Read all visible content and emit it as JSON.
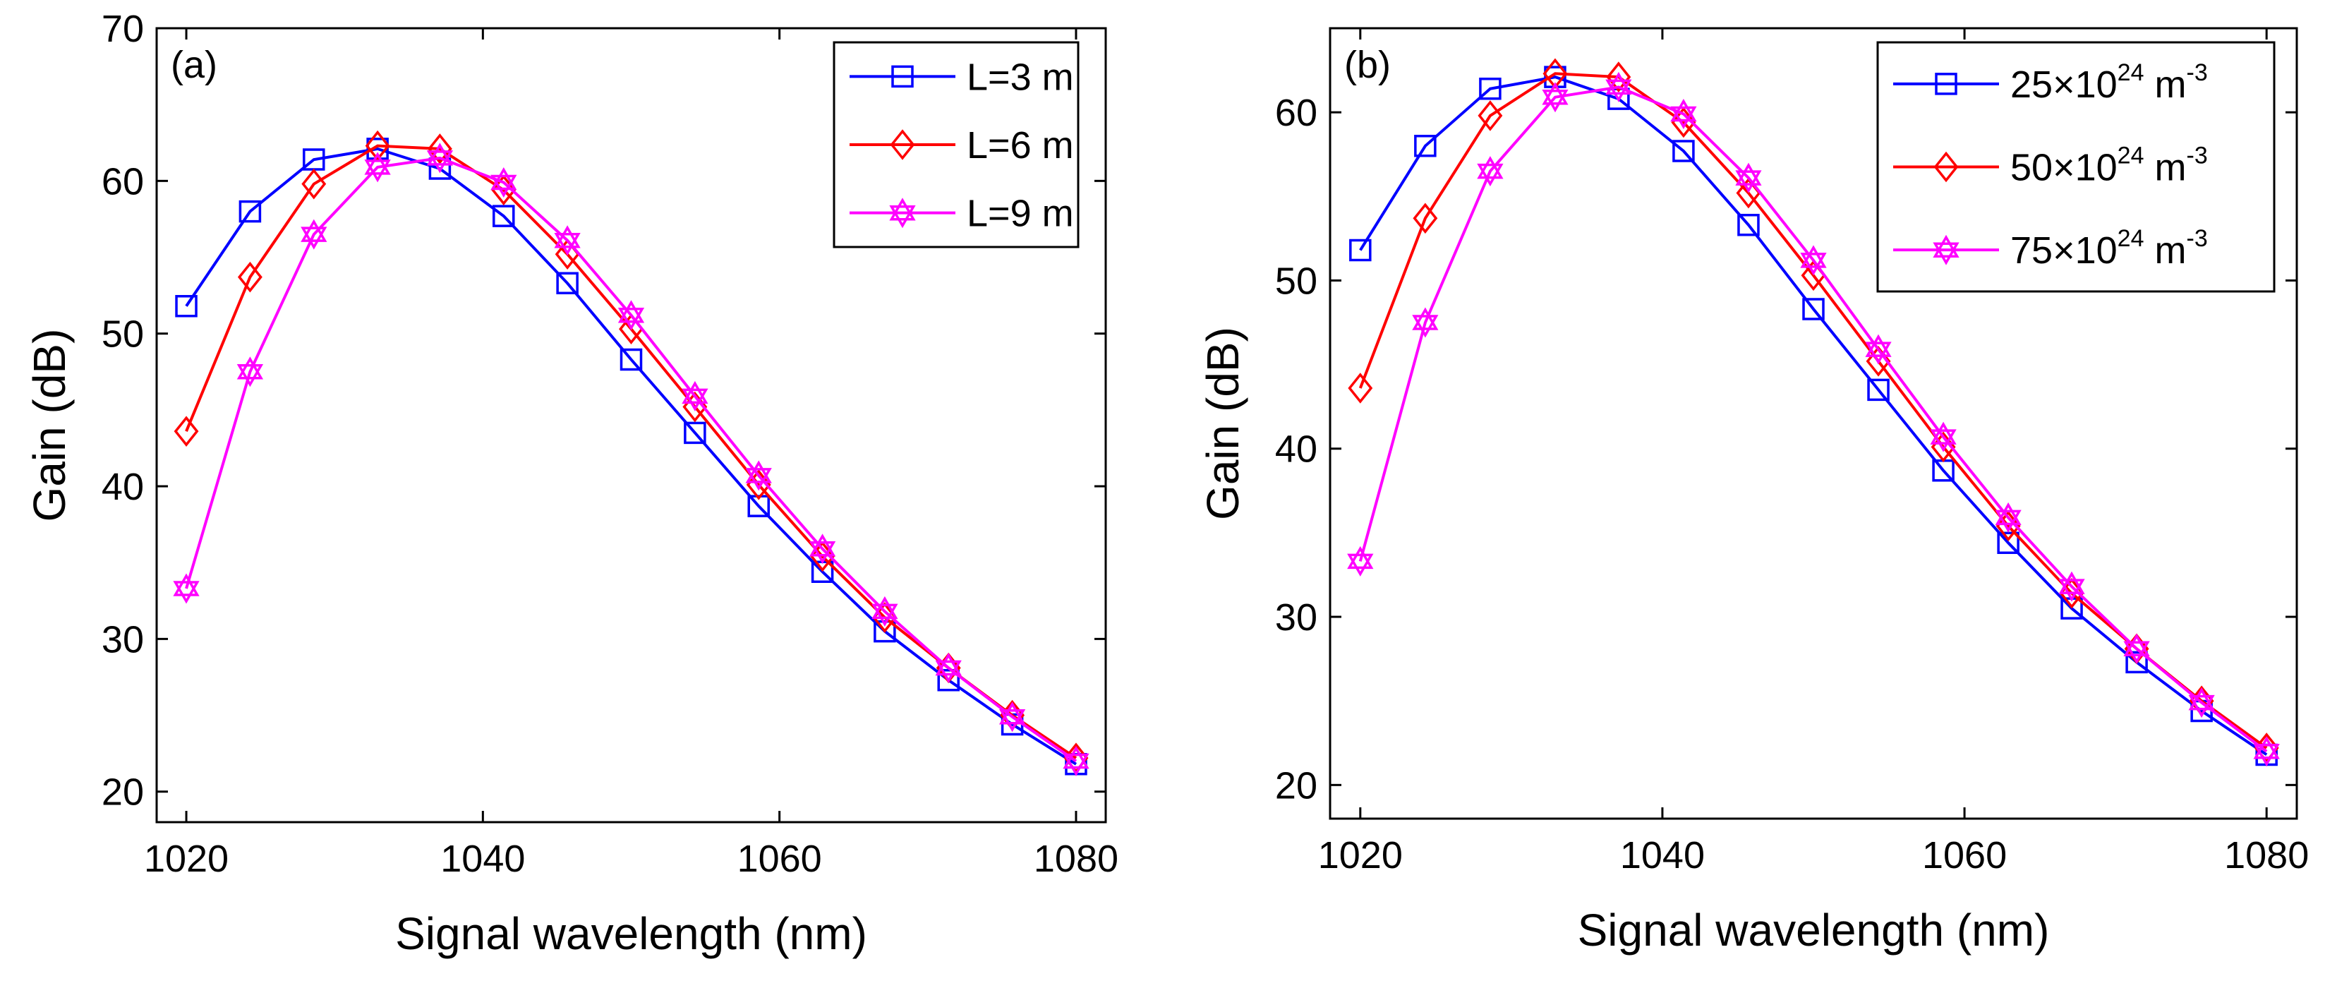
{
  "chart_data": [
    {
      "type": "line",
      "panel_label": "(a)",
      "xlabel": "Signal wavelength (nm)",
      "ylabel": "Gain (dB)",
      "xlim": [
        1018,
        1082
      ],
      "ylim": [
        18,
        70
      ],
      "xticks": [
        1020,
        1040,
        1060,
        1080
      ],
      "yticks": [
        20,
        30,
        40,
        50,
        60,
        70
      ],
      "legend_position": "top-right",
      "x": [
        1020,
        1024.3,
        1028.6,
        1032.9,
        1037.1,
        1041.4,
        1045.7,
        1050,
        1054.3,
        1058.6,
        1062.9,
        1067.1,
        1071.4,
        1075.7,
        1080
      ],
      "series": [
        {
          "name": "L=3 m",
          "legend": {
            "main": "L=3 m",
            "sup": "",
            "tail": ""
          },
          "color": "#0000ff",
          "marker": "square",
          "values": [
            51.8,
            58.0,
            61.4,
            62.1,
            60.8,
            57.7,
            53.3,
            48.3,
            43.5,
            38.7,
            34.4,
            30.5,
            27.3,
            24.4,
            21.8
          ]
        },
        {
          "name": "L=6 m",
          "legend": {
            "main": "L=6 m",
            "sup": "",
            "tail": ""
          },
          "color": "#ff0000",
          "marker": "diamond",
          "values": [
            43.6,
            53.7,
            59.8,
            62.3,
            62.1,
            59.4,
            55.2,
            50.3,
            45.2,
            40.1,
            35.4,
            31.4,
            28.1,
            25.0,
            22.2
          ]
        },
        {
          "name": "L=9 m",
          "legend": {
            "main": "L=9 m",
            "sup": "",
            "tail": ""
          },
          "color": "#ff00ff",
          "marker": "star",
          "values": [
            33.3,
            47.5,
            56.5,
            60.9,
            61.5,
            59.9,
            56.1,
            51.2,
            45.9,
            40.7,
            35.9,
            31.8,
            28.1,
            24.9,
            22.0
          ]
        }
      ]
    },
    {
      "type": "line",
      "panel_label": "(b)",
      "xlabel": "Signal wavelength (nm)",
      "ylabel": "Gain (dB)",
      "xlim": [
        1018,
        1082
      ],
      "ylim": [
        18,
        65
      ],
      "xticks": [
        1020,
        1040,
        1060,
        1080
      ],
      "yticks": [
        20,
        30,
        40,
        50,
        60
      ],
      "legend_position": "top-right",
      "x": [
        1020,
        1024.3,
        1028.6,
        1032.9,
        1037.1,
        1041.4,
        1045.7,
        1050,
        1054.3,
        1058.6,
        1062.9,
        1067.1,
        1071.4,
        1075.7,
        1080
      ],
      "series": [
        {
          "name": "25×10^24 m^-3",
          "legend": {
            "main": "25×10",
            "sup": "24",
            "tail": " m",
            "sup2": "-3"
          },
          "color": "#0000ff",
          "marker": "square",
          "values": [
            51.8,
            58.0,
            61.4,
            62.1,
            60.8,
            57.7,
            53.3,
            48.3,
            43.5,
            38.7,
            34.4,
            30.5,
            27.3,
            24.4,
            21.8
          ]
        },
        {
          "name": "50×10^24 m^-3",
          "legend": {
            "main": "50×10",
            "sup": "24",
            "tail": " m",
            "sup2": "-3"
          },
          "color": "#ff0000",
          "marker": "diamond",
          "values": [
            43.6,
            53.7,
            59.8,
            62.3,
            62.1,
            59.4,
            55.2,
            50.3,
            45.2,
            40.1,
            35.4,
            31.4,
            28.1,
            25.0,
            22.2
          ]
        },
        {
          "name": "75×10^24 m^-3",
          "legend": {
            "main": "75×10",
            "sup": "24",
            "tail": " m",
            "sup2": "-3"
          },
          "color": "#ff00ff",
          "marker": "star",
          "values": [
            33.3,
            47.5,
            56.5,
            60.9,
            61.5,
            59.9,
            56.1,
            51.2,
            45.9,
            40.7,
            35.9,
            31.8,
            28.1,
            24.9,
            22.0
          ]
        }
      ]
    }
  ]
}
